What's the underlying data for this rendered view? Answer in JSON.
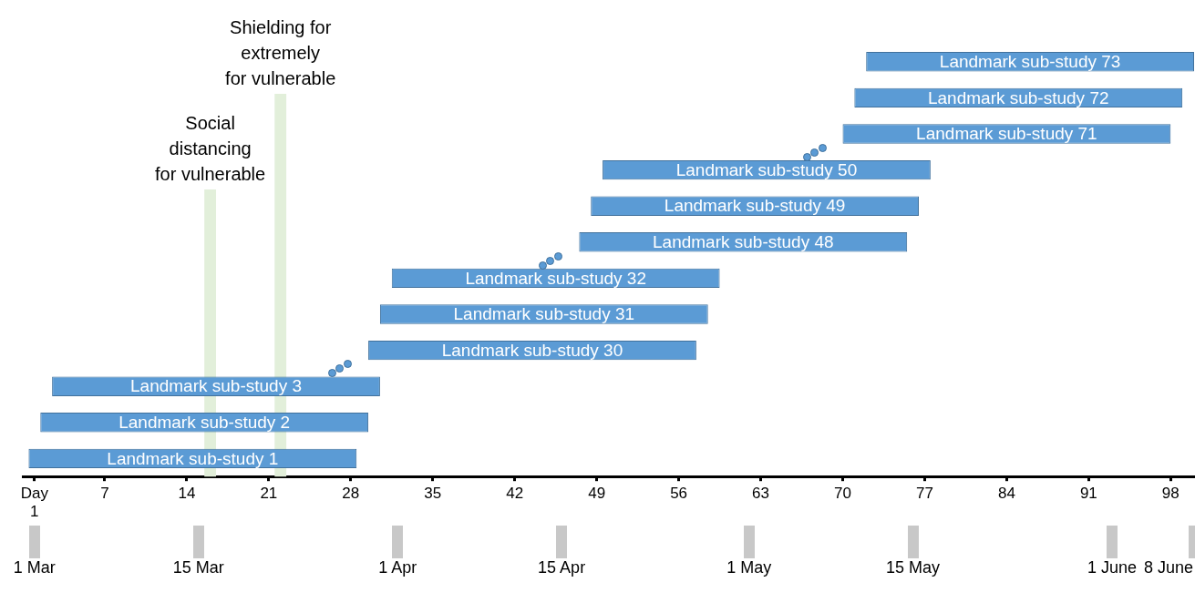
{
  "chart_data": {
    "type": "bar",
    "orientation": "horizontal",
    "categories": [
      null,
      null,
      null,
      null,
      null,
      null,
      null,
      null,
      null,
      null,
      null,
      null
    ],
    "base": [
      72,
      71,
      70,
      49.5,
      48.5,
      47.5,
      31.5,
      30.5,
      29.5,
      2.5,
      1.5,
      0.5
    ],
    "values": [
      28,
      28,
      28,
      28,
      28,
      28,
      28,
      28,
      28,
      28,
      28,
      28
    ],
    "value_labels": [
      "Landmark sub-study 73",
      "Landmark sub-study 72",
      "Landmark sub-study 71",
      "Landmark sub-study 50",
      "Landmark sub-study 49",
      "Landmark sub-study 48",
      "Landmark sub-study 32",
      "Landmark sub-study 31",
      "Landmark sub-study 30",
      "Landmark sub-study 3",
      "Landmark sub-study 2",
      "Landmark sub-study 1"
    ],
    "color": "#5b9bd5",
    "xlim": [
      0,
      100
    ],
    "xticks": [
      {
        "value": 1,
        "label": "Day\n1"
      },
      7,
      14,
      21,
      28,
      35,
      42,
      49,
      56,
      63,
      70,
      77,
      84,
      91,
      98
    ],
    "bands": [
      {
        "axis": "x",
        "from": 15.5,
        "to": 16.5,
        "label": "Social\ndistancing\nfor vulnerable",
        "color": "#e2efda"
      },
      {
        "axis": "x",
        "from": 21.5,
        "to": 22.5,
        "label": "Shielding for\nextremely\nfor vulnerable",
        "color": "#e2efda"
      }
    ],
    "x2lim": [
      "--02-29",
      "--06-08"
    ],
    "x2ticks": [
      {
        "value": "--03-01",
        "label": "1 Mar"
      },
      {
        "value": "--03-15",
        "label": "15 Mar"
      },
      {
        "value": "--04-01",
        "label": "1 Apr"
      },
      {
        "value": "--04-15",
        "label": "15 Apr"
      },
      {
        "value": "--05-01",
        "label": "1 May"
      },
      {
        "value": "--05-15",
        "label": "15 May"
      },
      {
        "value": "--06-01",
        "label": "1 June"
      },
      {
        "value": "--06-08",
        "label": "8 June"
      }
    ],
    "grid": false,
    "legend": false
  }
}
